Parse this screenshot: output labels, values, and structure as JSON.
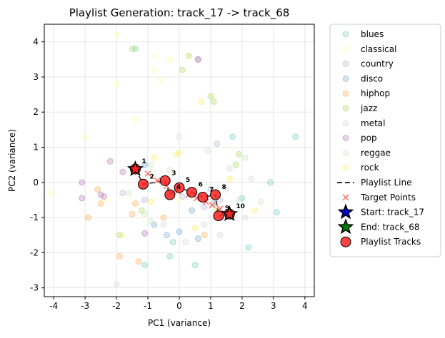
{
  "chart_data": {
    "type": "scatter",
    "title": "Playlist Generation: track_17 -> track_68",
    "xlabel": "PC1 (variance)",
    "ylabel": "PC2 (variance)",
    "xlim": [
      -4.3,
      4.3
    ],
    "ylim": [
      -3.25,
      4.5
    ],
    "xticks": [
      -4,
      -3,
      -2,
      -1,
      0,
      1,
      2,
      3,
      4
    ],
    "yticks": [
      -3,
      -2,
      -1,
      0,
      1,
      2,
      3,
      4
    ],
    "grid": true,
    "legend_placement": "outside right",
    "genres": [
      {
        "name": "blues",
        "color": "#7fd1c7",
        "points": [
          [
            -1.4,
            3.8
          ],
          [
            3.7,
            1.3
          ],
          [
            -1.1,
            -2.35
          ],
          [
            2.0,
            -0.45
          ],
          [
            2.9,
            0.0
          ],
          [
            3.1,
            -0.85
          ],
          [
            2.2,
            -1.85
          ],
          [
            1.7,
            1.3
          ],
          [
            -0.3,
            -2.1
          ],
          [
            0.5,
            -2.35
          ],
          [
            -0.2,
            -1.7
          ]
        ]
      },
      {
        "name": "classical",
        "color": "#ffffb3",
        "points": [
          [
            -2.0,
            4.2
          ],
          [
            -2.0,
            2.8
          ],
          [
            -0.8,
            3.6
          ],
          [
            -0.8,
            3.2
          ],
          [
            -0.3,
            3.5
          ],
          [
            -0.6,
            2.9
          ],
          [
            -1.4,
            1.8
          ],
          [
            -3.0,
            1.3
          ],
          [
            -4.1,
            -0.3
          ],
          [
            -2.3,
            -0.5
          ],
          [
            -1.8,
            -1.5
          ],
          [
            0.0,
            -0.5
          ]
        ]
      },
      {
        "name": "country",
        "color": "#bebada",
        "points": [
          [
            0.6,
            3.5
          ],
          [
            1.2,
            1.1
          ],
          [
            1.3,
            -0.5
          ],
          [
            1.4,
            -1.0
          ],
          [
            -1.1,
            -0.5
          ],
          [
            0.1,
            -0.4
          ],
          [
            1.0,
            -0.2
          ],
          [
            0.8,
            -0.7
          ],
          [
            -1.8,
            -0.3
          ]
        ]
      },
      {
        "name": "disco",
        "color": "#80b1d3",
        "points": [
          [
            0.0,
            -1.4
          ],
          [
            -0.4,
            -1.5
          ],
          [
            0.4,
            -0.8
          ],
          [
            1.1,
            -0.6
          ],
          [
            -0.8,
            -1.2
          ],
          [
            0.6,
            -1.6
          ],
          [
            -1.1,
            0.5
          ]
        ]
      },
      {
        "name": "hiphop",
        "color": "#fdb462",
        "points": [
          [
            -1.4,
            -0.6
          ],
          [
            -2.5,
            -0.6
          ],
          [
            -2.9,
            -1.0
          ],
          [
            -1.3,
            -2.25
          ],
          [
            -0.5,
            -1.0
          ],
          [
            0.8,
            -1.5
          ],
          [
            -1.9,
            -2.1
          ],
          [
            -2.6,
            -0.2
          ],
          [
            -1.5,
            -0.9
          ]
        ]
      },
      {
        "name": "jazz",
        "color": "#b3de69",
        "points": [
          [
            -1.5,
            3.8
          ],
          [
            0.3,
            3.6
          ],
          [
            0.1,
            3.2
          ],
          [
            1.0,
            2.45
          ],
          [
            1.1,
            2.3
          ],
          [
            1.9,
            0.8
          ],
          [
            -1.9,
            -1.5
          ],
          [
            -0.3,
            -0.35
          ],
          [
            -1.2,
            -0.8
          ],
          [
            1.8,
            0.5
          ]
        ]
      },
      {
        "name": "metal",
        "color": "#d9d9d9",
        "points": [
          [
            -2.0,
            -2.9
          ],
          [
            1.3,
            -1.5
          ],
          [
            2.1,
            -1.0
          ],
          [
            2.3,
            0.1
          ],
          [
            1.6,
            0.4
          ],
          [
            0.8,
            -1.2
          ],
          [
            -0.5,
            -1.2
          ],
          [
            1.5,
            -0.2
          ],
          [
            0.2,
            -1.7
          ]
        ]
      },
      {
        "name": "pop",
        "color": "#bc80bd",
        "points": [
          [
            0.6,
            3.5
          ],
          [
            -2.2,
            0.6
          ],
          [
            -3.1,
            0.0
          ],
          [
            -3.1,
            -0.45
          ],
          [
            -2.5,
            -0.35
          ],
          [
            -1.1,
            -1.45
          ],
          [
            -2.4,
            -0.4
          ],
          [
            -1.8,
            0.3
          ]
        ]
      },
      {
        "name": "reggae",
        "color": "#ccebc5",
        "points": [
          [
            -1.6,
            -0.3
          ],
          [
            -1.1,
            -0.9
          ],
          [
            -0.9,
            -1.1
          ],
          [
            -0.9,
            0.5
          ],
          [
            1.9,
            -0.5
          ],
          [
            2.6,
            -0.55
          ],
          [
            -0.3,
            0.35
          ],
          [
            2.1,
            0.7
          ],
          [
            0.0,
            1.3
          ],
          [
            0.9,
            0.9
          ]
        ]
      },
      {
        "name": "rock",
        "color": "#ffed6f",
        "points": [
          [
            -0.1,
            0.8
          ],
          [
            0.0,
            0.85
          ],
          [
            -0.9,
            -0.55
          ],
          [
            0.7,
            2.3
          ],
          [
            1.2,
            -0.75
          ],
          [
            0.5,
            -1.3
          ],
          [
            2.4,
            -0.8
          ],
          [
            1.6,
            0.1
          ],
          [
            -0.8,
            0.7
          ]
        ]
      }
    ],
    "playlist": {
      "line_color": "#333333",
      "target_color": "#ff5a4d",
      "track_color": "#ff2020",
      "target_points": [
        [
          -1.4,
          0.4
        ],
        [
          -1.0,
          0.25
        ],
        [
          -0.7,
          0.05
        ],
        [
          -0.4,
          -0.1
        ],
        [
          -0.05,
          -0.25
        ],
        [
          0.3,
          -0.35
        ],
        [
          0.55,
          -0.45
        ],
        [
          0.85,
          -0.55
        ],
        [
          1.05,
          -0.65
        ],
        [
          1.3,
          -0.75
        ],
        [
          1.55,
          -0.85
        ]
      ],
      "tracks": [
        {
          "label": "1",
          "x": -1.4,
          "y": 0.38
        },
        {
          "label": "2",
          "x": -1.15,
          "y": -0.05
        },
        {
          "label": "3",
          "x": -0.45,
          "y": 0.05
        },
        {
          "label": "4",
          "x": -0.3,
          "y": -0.35
        },
        {
          "label": "5",
          "x": 0.0,
          "y": -0.15
        },
        {
          "label": "6",
          "x": 0.4,
          "y": -0.28
        },
        {
          "label": "7",
          "x": 0.75,
          "y": -0.42
        },
        {
          "label": "8",
          "x": 1.15,
          "y": -0.35
        },
        {
          "label": "9",
          "x": 1.25,
          "y": -0.95
        },
        {
          "label": "10",
          "x": 1.6,
          "y": -0.9
        }
      ],
      "start": {
        "x": -1.4,
        "y": 0.38
      },
      "end": {
        "x": 1.6,
        "y": -0.9
      }
    },
    "legend": [
      {
        "label": "blues",
        "kind": "genre",
        "color": "#7fd1c7"
      },
      {
        "label": "classical",
        "kind": "genre",
        "color": "#ffffb3"
      },
      {
        "label": "country",
        "kind": "genre",
        "color": "#bebada"
      },
      {
        "label": "disco",
        "kind": "genre",
        "color": "#80b1d3"
      },
      {
        "label": "hiphop",
        "kind": "genre",
        "color": "#fdb462"
      },
      {
        "label": "jazz",
        "kind": "genre",
        "color": "#b3de69"
      },
      {
        "label": "metal",
        "kind": "genre",
        "color": "#d9d9d9"
      },
      {
        "label": "pop",
        "kind": "genre",
        "color": "#bc80bd"
      },
      {
        "label": "reggae",
        "kind": "genre",
        "color": "#ccebc5"
      },
      {
        "label": "rock",
        "kind": "genre",
        "color": "#ffed6f"
      },
      {
        "label": "Playlist Line",
        "kind": "line",
        "color": "#333333"
      },
      {
        "label": "Target Points",
        "kind": "cross",
        "color": "#ff5a4d"
      },
      {
        "label": "Start: track_17",
        "kind": "star",
        "color": "#0000cc"
      },
      {
        "label": "End: track_68",
        "kind": "star",
        "color": "#008000"
      },
      {
        "label": "Playlist Tracks",
        "kind": "circle",
        "color": "#ff2020"
      }
    ]
  }
}
